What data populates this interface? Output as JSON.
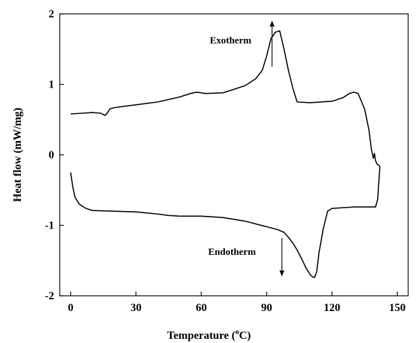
{
  "chart_data": {
    "type": "line",
    "title": "",
    "xlabel": "Temperature (",
    "xlabel_sup": "o",
    "xlabel_tail": "C)",
    "ylabel": "Heat flow (mW/mg)",
    "xlim": [
      -5,
      155
    ],
    "ylim": [
      -2,
      2
    ],
    "xticks": [
      0,
      30,
      60,
      90,
      120,
      150
    ],
    "yticks": [
      -2,
      -1,
      0,
      1,
      2
    ],
    "xtick_labels": [
      "0",
      "30",
      "60",
      "90",
      "120",
      "150"
    ],
    "ytick_labels": [
      "-2",
      "-1",
      "0",
      "1",
      "2"
    ],
    "grid": false,
    "legend": "none",
    "line_color": "#000000",
    "annotations": [
      {
        "text": "Exotherm",
        "x": 83,
        "y": 1.58,
        "arrow_x": 92.5,
        "arrow_from": 1.25,
        "arrow_to": 1.9,
        "arrow_dir": "up"
      },
      {
        "text": "Endotherm",
        "x": 85,
        "y": -1.42,
        "arrow_x": 97,
        "arrow_from": -1.18,
        "arrow_to": -1.72,
        "arrow_dir": "down"
      }
    ],
    "series": [
      {
        "segment": "upper",
        "x": [
          0,
          5,
          10,
          14,
          15,
          16,
          17,
          18,
          20,
          30,
          40,
          50,
          55,
          58,
          62,
          70,
          80,
          85,
          88,
          90,
          92,
          94,
          96,
          98,
          100,
          102,
          104,
          110,
          120,
          125,
          128,
          130,
          132,
          135,
          137,
          138,
          139,
          139.5,
          140,
          140.5,
          141,
          142
        ],
        "y": [
          0.58,
          0.59,
          0.6,
          0.59,
          0.57,
          0.56,
          0.6,
          0.65,
          0.67,
          0.71,
          0.75,
          0.82,
          0.87,
          0.89,
          0.87,
          0.88,
          0.98,
          1.08,
          1.2,
          1.4,
          1.65,
          1.74,
          1.76,
          1.5,
          1.2,
          0.95,
          0.75,
          0.74,
          0.76,
          0.81,
          0.87,
          0.89,
          0.87,
          0.65,
          0.35,
          0.1,
          -0.05,
          0.02,
          -0.08,
          -0.12,
          -0.14,
          -0.16
        ]
      },
      {
        "segment": "lower",
        "x": [
          0,
          1,
          2,
          4,
          7,
          10,
          20,
          30,
          40,
          45,
          50,
          60,
          70,
          80,
          85,
          90,
          95,
          98,
          100,
          102,
          104,
          106,
          108,
          110,
          111,
          112,
          113,
          114,
          116,
          118,
          120,
          125,
          130,
          135,
          138,
          140,
          141,
          142
        ],
        "y": [
          -0.25,
          -0.45,
          -0.6,
          -0.7,
          -0.76,
          -0.79,
          -0.8,
          -0.81,
          -0.84,
          -0.86,
          -0.87,
          -0.87,
          -0.89,
          -0.94,
          -0.98,
          -1.02,
          -1.06,
          -1.1,
          -1.17,
          -1.25,
          -1.35,
          -1.47,
          -1.6,
          -1.7,
          -1.73,
          -1.74,
          -1.66,
          -1.4,
          -1.05,
          -0.8,
          -0.76,
          -0.75,
          -0.74,
          -0.74,
          -0.74,
          -0.74,
          -0.63,
          -0.16
        ]
      }
    ]
  }
}
